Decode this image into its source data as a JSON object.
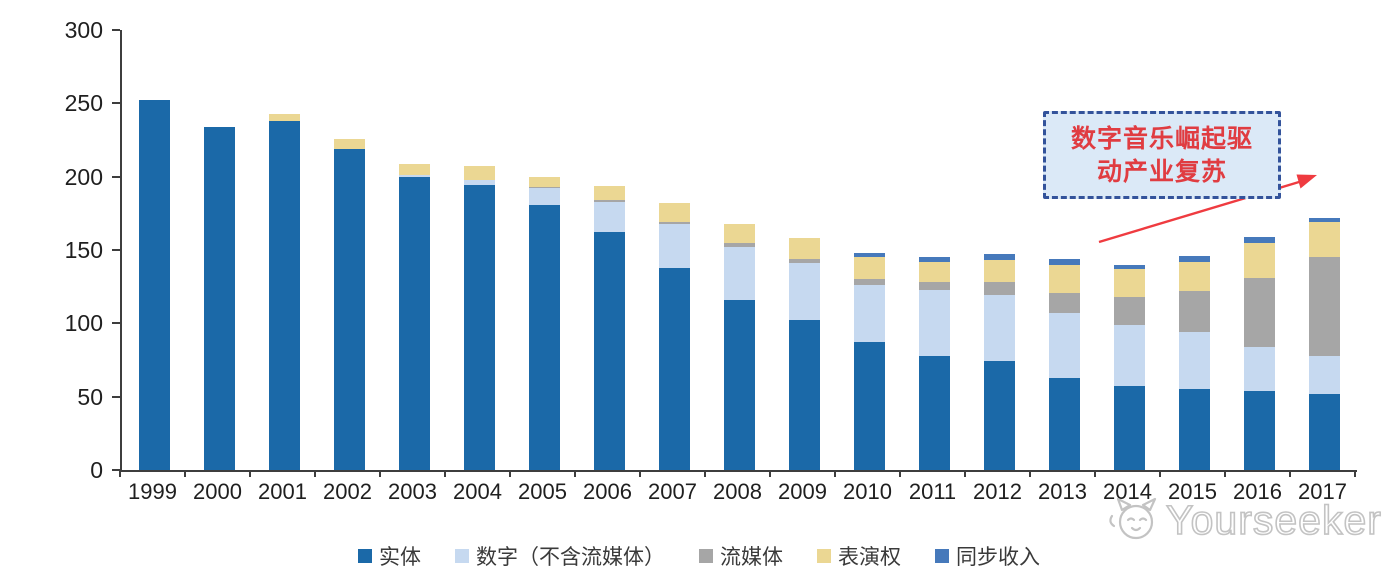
{
  "chart_data": {
    "type": "bar",
    "stacked": true,
    "title": "",
    "xlabel": "",
    "ylabel": "",
    "categories": [
      "1999",
      "2000",
      "2001",
      "2002",
      "2003",
      "2004",
      "2005",
      "2006",
      "2007",
      "2008",
      "2009",
      "2010",
      "2011",
      "2012",
      "2013",
      "2014",
      "2015",
      "2016",
      "2017"
    ],
    "series": [
      {
        "name": "实体",
        "color": "#1b69a8",
        "values": [
          252,
          234,
          238,
          219,
          200,
          194,
          181,
          162,
          138,
          116,
          102,
          87,
          78,
          74,
          63,
          57,
          55,
          54,
          52
        ]
      },
      {
        "name": "数字（不含流媒体）",
        "color": "#c6d9f0",
        "values": [
          0,
          0,
          0,
          0,
          1,
          4,
          11,
          21,
          30,
          36,
          39,
          39,
          45,
          45,
          44,
          42,
          39,
          30,
          26
        ]
      },
      {
        "name": "流媒体",
        "color": "#a6a6a6",
        "values": [
          0,
          0,
          0,
          0,
          0,
          0,
          1,
          1,
          1,
          3,
          3,
          4,
          5,
          9,
          14,
          19,
          28,
          47,
          67
        ]
      },
      {
        "name": "表演权",
        "color": "#ebd793",
        "values": [
          0,
          0,
          5,
          7,
          8,
          9,
          7,
          10,
          13,
          13,
          14,
          15,
          14,
          15,
          19,
          19,
          20,
          24,
          24
        ]
      },
      {
        "name": "同步收入",
        "color": "#4679bb",
        "values": [
          0,
          0,
          0,
          0,
          0,
          0,
          0,
          0,
          0,
          0,
          0,
          3,
          3,
          4,
          4,
          3,
          4,
          4,
          3
        ]
      }
    ],
    "ylim": [
      0,
      300
    ],
    "yticks": [
      0,
      50,
      100,
      150,
      200,
      250,
      300
    ],
    "grid": false,
    "legend_position": "bottom"
  },
  "annotation": {
    "line1": "数字音乐崛起驱",
    "line2": "动产业复苏",
    "box_fill": "#dbe9f7",
    "border_color": "#33539b",
    "text_color": "#e03c41",
    "arrow_color": "#ef3b40"
  },
  "watermark": {
    "text": "Yourseeker",
    "logo": "cat-logo",
    "color": "#c3c3c3"
  }
}
